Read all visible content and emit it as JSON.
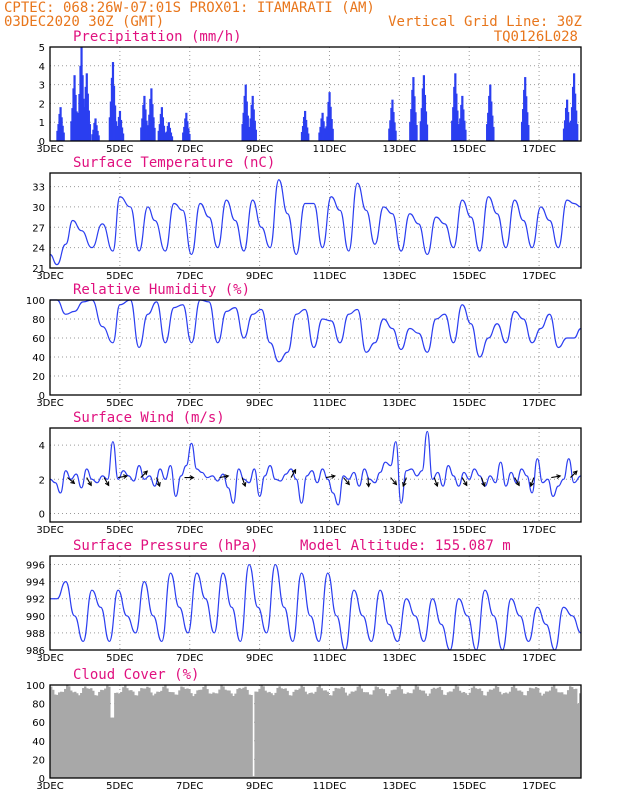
{
  "header": {
    "line1": "CPTEC:   068:26W-07:01S   PROX01: ITAMARATI (AM)",
    "line2": "03DEC2020 30Z (GMT)",
    "vertical_grid": "Vertical Grid Line: 30Z",
    "code": "TQ0126L028"
  },
  "colors": {
    "series": "#2b3ef0",
    "title": "#e0117f",
    "header": "#e8761c",
    "cloud": "#a8a8a8"
  },
  "x_axis": {
    "labels": [
      "3DEC",
      "5DEC",
      "7DEC",
      "9DEC",
      "11DEC",
      "13DEC",
      "15DEC",
      "17DEC"
    ],
    "days": [
      3,
      5,
      7,
      9,
      11,
      13,
      15,
      17
    ],
    "range_days": [
      3,
      18.2
    ]
  },
  "chart_data": [
    {
      "id": "precip",
      "type": "bar",
      "title": "Precipitation (mm/h)",
      "ylim": [
        0,
        5
      ],
      "yticks": [
        0,
        1,
        2,
        3,
        4,
        5
      ],
      "bursts": [
        {
          "day": 3.3,
          "peak": 1.8
        },
        {
          "day": 3.7,
          "peak": 3.5
        },
        {
          "day": 3.9,
          "peak": 5.0
        },
        {
          "day": 4.05,
          "peak": 3.6
        },
        {
          "day": 4.3,
          "peak": 1.2
        },
        {
          "day": 4.8,
          "peak": 4.2
        },
        {
          "day": 5.0,
          "peak": 1.6
        },
        {
          "day": 5.7,
          "peak": 2.4
        },
        {
          "day": 5.9,
          "peak": 2.8
        },
        {
          "day": 6.2,
          "peak": 1.8
        },
        {
          "day": 6.4,
          "peak": 1.0
        },
        {
          "day": 6.9,
          "peak": 1.5
        },
        {
          "day": 8.6,
          "peak": 3.0
        },
        {
          "day": 8.8,
          "peak": 2.4
        },
        {
          "day": 10.3,
          "peak": 1.6
        },
        {
          "day": 10.8,
          "peak": 1.5
        },
        {
          "day": 11.0,
          "peak": 2.6
        },
        {
          "day": 12.8,
          "peak": 2.2
        },
        {
          "day": 13.4,
          "peak": 3.4
        },
        {
          "day": 13.7,
          "peak": 3.5
        },
        {
          "day": 14.6,
          "peak": 3.6
        },
        {
          "day": 14.8,
          "peak": 2.4
        },
        {
          "day": 15.6,
          "peak": 3.0
        },
        {
          "day": 16.6,
          "peak": 3.4
        },
        {
          "day": 17.8,
          "peak": 2.2
        },
        {
          "day": 18.0,
          "peak": 3.6
        }
      ]
    },
    {
      "id": "temp",
      "type": "line",
      "title": "Surface Temperature (nC)",
      "ylim": [
        21,
        35
      ],
      "yticks": [
        21,
        24,
        27,
        30,
        33
      ],
      "x": [
        3.0,
        3.2,
        3.45,
        3.65,
        3.9,
        4.2,
        4.5,
        4.8,
        5.0,
        5.3,
        5.55,
        5.8,
        6.0,
        6.3,
        6.55,
        6.8,
        7.05,
        7.3,
        7.55,
        7.8,
        8.05,
        8.3,
        8.55,
        8.8,
        9.05,
        9.3,
        9.55,
        9.8,
        10.05,
        10.3,
        10.55,
        10.8,
        11.05,
        11.3,
        11.55,
        11.8,
        12.05,
        12.3,
        12.55,
        12.8,
        13.05,
        13.3,
        13.55,
        13.8,
        14.05,
        14.3,
        14.55,
        14.8,
        15.05,
        15.3,
        15.55,
        15.8,
        16.05,
        16.3,
        16.55,
        16.8,
        17.05,
        17.3,
        17.55,
        17.8,
        18.0,
        18.2
      ],
      "values": [
        23.0,
        21.5,
        24.5,
        28.0,
        26.5,
        24.0,
        27.5,
        23.5,
        31.5,
        30.0,
        23.5,
        30.0,
        28.0,
        23.5,
        30.5,
        29.5,
        23.0,
        30.5,
        28.5,
        24.0,
        31.0,
        28.0,
        23.5,
        31.0,
        27.0,
        24.0,
        34.0,
        29.0,
        23.0,
        30.5,
        30.5,
        24.0,
        31.5,
        29.5,
        23.5,
        33.5,
        29.5,
        24.5,
        30.0,
        29.0,
        23.5,
        29.0,
        27.5,
        23.0,
        28.5,
        27.5,
        24.0,
        31.0,
        28.5,
        23.5,
        31.5,
        29.0,
        24.0,
        31.0,
        28.0,
        24.0,
        30.0,
        28.0,
        24.0,
        31.0,
        30.5,
        30.0
      ]
    },
    {
      "id": "rh",
      "type": "line",
      "title": "Relative Humidity (%)",
      "ylim": [
        0,
        100
      ],
      "yticks": [
        0,
        20,
        40,
        60,
        80,
        100
      ],
      "x": [
        3.0,
        3.2,
        3.45,
        3.7,
        3.95,
        4.2,
        4.5,
        4.8,
        5.0,
        5.3,
        5.55,
        5.8,
        6.05,
        6.3,
        6.55,
        6.8,
        7.05,
        7.3,
        7.55,
        7.8,
        8.05,
        8.3,
        8.55,
        8.8,
        9.05,
        9.3,
        9.55,
        9.8,
        10.05,
        10.3,
        10.55,
        10.8,
        11.05,
        11.3,
        11.55,
        11.8,
        12.05,
        12.3,
        12.55,
        12.8,
        13.05,
        13.3,
        13.55,
        13.8,
        14.05,
        14.3,
        14.55,
        14.8,
        15.05,
        15.3,
        15.55,
        15.8,
        16.05,
        16.3,
        16.55,
        16.8,
        17.05,
        17.3,
        17.55,
        17.8,
        18.0,
        18.2
      ],
      "values": [
        100,
        100,
        85,
        88,
        98,
        100,
        72,
        55,
        95,
        100,
        50,
        85,
        98,
        55,
        92,
        95,
        55,
        100,
        98,
        55,
        88,
        92,
        60,
        85,
        90,
        55,
        35,
        45,
        85,
        90,
        50,
        80,
        78,
        55,
        85,
        90,
        45,
        55,
        80,
        70,
        48,
        70,
        65,
        45,
        80,
        85,
        55,
        95,
        75,
        40,
        60,
        75,
        55,
        88,
        80,
        55,
        70,
        85,
        50,
        60,
        60,
        70
      ]
    },
    {
      "id": "wind",
      "type": "line",
      "title": "Surface Wind (m/s)",
      "ylim": [
        -0.5,
        5
      ],
      "yticks": [
        0,
        2,
        4
      ],
      "x": [
        3.0,
        3.15,
        3.3,
        3.45,
        3.6,
        3.75,
        3.9,
        4.05,
        4.2,
        4.35,
        4.5,
        4.65,
        4.8,
        4.95,
        5.1,
        5.25,
        5.4,
        5.55,
        5.7,
        5.85,
        6.0,
        6.15,
        6.3,
        6.45,
        6.6,
        6.75,
        6.9,
        7.05,
        7.2,
        7.35,
        7.5,
        7.65,
        7.8,
        7.95,
        8.1,
        8.25,
        8.4,
        8.55,
        8.7,
        8.85,
        9.0,
        9.15,
        9.3,
        9.45,
        9.6,
        9.75,
        9.9,
        10.05,
        10.2,
        10.35,
        10.5,
        10.65,
        10.8,
        10.95,
        11.1,
        11.25,
        11.4,
        11.55,
        11.7,
        11.85,
        12.0,
        12.15,
        12.3,
        12.45,
        12.6,
        12.75,
        12.9,
        13.05,
        13.2,
        13.35,
        13.5,
        13.65,
        13.8,
        13.95,
        14.1,
        14.25,
        14.4,
        14.55,
        14.7,
        14.85,
        15.0,
        15.15,
        15.3,
        15.45,
        15.6,
        15.75,
        15.9,
        16.05,
        16.2,
        16.35,
        16.5,
        16.65,
        16.8,
        16.95,
        17.1,
        17.25,
        17.4,
        17.55,
        17.7,
        17.85,
        18.0,
        18.2
      ],
      "values": [
        2.0,
        1.8,
        1.2,
        2.5,
        2.0,
        2.3,
        1.5,
        2.6,
        2.0,
        1.8,
        2.2,
        2.0,
        4.2,
        2.0,
        2.5,
        2.2,
        1.9,
        2.8,
        2.0,
        2.2,
        1.6,
        2.6,
        2.0,
        2.8,
        1.0,
        2.2,
        2.8,
        4.1,
        2.6,
        2.4,
        2.1,
        2.2,
        1.9,
        2.3,
        1.5,
        0.6,
        2.6,
        2.0,
        1.8,
        2.6,
        1.0,
        2.2,
        2.8,
        2.0,
        1.9,
        2.3,
        2.6,
        2.0,
        0.6,
        2.2,
        2.5,
        1.8,
        2.6,
        2.0,
        1.2,
        0.5,
        2.2,
        2.0,
        2.4,
        1.6,
        2.6,
        2.0,
        1.8,
        2.4,
        3.0,
        2.8,
        4.2,
        0.6,
        2.5,
        2.6,
        2.2,
        2.5,
        4.8,
        2.0,
        2.4,
        1.6,
        2.8,
        2.2,
        1.6,
        2.4,
        2.0,
        2.6,
        2.2,
        1.6,
        2.2,
        1.8,
        3.0,
        1.6,
        2.4,
        1.8,
        2.6,
        2.2,
        1.2,
        3.2,
        1.8,
        2.0,
        1.0,
        1.6,
        2.0,
        3.2,
        1.8,
        2.2
      ]
    },
    {
      "id": "pressure",
      "type": "line",
      "title": "Surface Pressure (hPa)",
      "subtitle": "Model Altitude: 155.087 m",
      "ylim": [
        986,
        997
      ],
      "yticks": [
        986,
        988,
        990,
        992,
        994,
        996
      ],
      "x": [
        3.0,
        3.2,
        3.45,
        3.7,
        3.95,
        4.2,
        4.45,
        4.7,
        4.95,
        5.2,
        5.45,
        5.7,
        5.95,
        6.2,
        6.45,
        6.7,
        6.95,
        7.2,
        7.45,
        7.7,
        7.95,
        8.2,
        8.45,
        8.7,
        8.95,
        9.2,
        9.45,
        9.7,
        9.95,
        10.2,
        10.45,
        10.7,
        10.95,
        11.2,
        11.45,
        11.7,
        11.95,
        12.2,
        12.45,
        12.7,
        12.95,
        13.2,
        13.45,
        13.7,
        13.95,
        14.2,
        14.45,
        14.7,
        14.95,
        15.2,
        15.45,
        15.7,
        15.95,
        16.2,
        16.45,
        16.7,
        16.95,
        17.2,
        17.45,
        17.7,
        17.95,
        18.2
      ],
      "values": [
        992,
        992,
        994,
        990,
        987,
        993,
        991,
        987,
        993,
        990,
        988,
        994,
        990,
        987,
        995,
        991,
        988,
        995,
        992,
        988,
        995,
        991,
        987,
        996,
        991,
        988,
        996,
        991,
        987,
        995,
        990,
        987,
        995,
        990,
        986,
        993,
        990,
        987,
        993,
        989,
        987,
        992,
        990,
        987,
        992,
        989,
        986,
        992,
        990,
        986,
        993,
        990,
        986,
        992,
        990,
        987,
        991,
        989,
        986,
        991,
        990,
        988
      ]
    },
    {
      "id": "cloud",
      "type": "area",
      "title": "Cloud Cover (%)",
      "ylim": [
        0,
        100
      ],
      "yticks": [
        0,
        20,
        40,
        60,
        80,
        100
      ],
      "mean_level": 94,
      "dips": [
        {
          "day": 4.75,
          "value": 65
        },
        {
          "day": 8.8,
          "value": 2
        },
        {
          "day": 18.1,
          "value": 80
        }
      ]
    }
  ],
  "wind_arrows": [
    {
      "day": 3.5,
      "dir": 130
    },
    {
      "day": 4.05,
      "dir": 150
    },
    {
      "day": 4.55,
      "dir": 150
    },
    {
      "day": 4.95,
      "dir": 80
    },
    {
      "day": 5.6,
      "dir": 45
    },
    {
      "day": 6.05,
      "dir": 160
    },
    {
      "day": 6.85,
      "dir": 90
    },
    {
      "day": 7.85,
      "dir": 80
    },
    {
      "day": 8.5,
      "dir": 160
    },
    {
      "day": 9.9,
      "dir": 30
    },
    {
      "day": 10.9,
      "dir": 80
    },
    {
      "day": 11.4,
      "dir": 140
    },
    {
      "day": 12.1,
      "dir": 175
    },
    {
      "day": 12.75,
      "dir": 140
    },
    {
      "day": 13.2,
      "dir": 200
    },
    {
      "day": 14.0,
      "dir": 160
    },
    {
      "day": 14.8,
      "dir": 150
    },
    {
      "day": 15.35,
      "dir": 160
    },
    {
      "day": 16.3,
      "dir": 150
    },
    {
      "day": 16.85,
      "dir": 200
    },
    {
      "day": 17.35,
      "dir": 80
    },
    {
      "day": 17.9,
      "dir": 45
    }
  ]
}
